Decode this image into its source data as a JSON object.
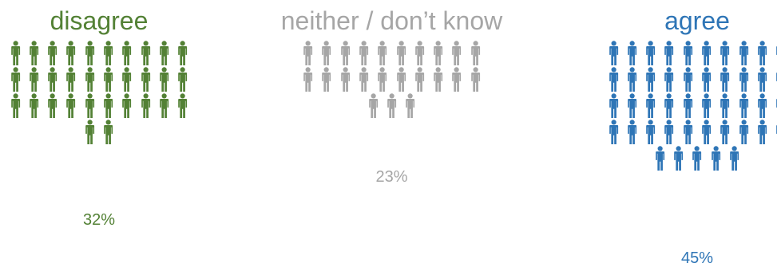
{
  "chart_data": {
    "type": "pictogram",
    "unit": "one figure ≈ 1%",
    "series": [
      {
        "name": "disagree",
        "value": 32,
        "label": "32%",
        "color": "#538135",
        "icons": 32
      },
      {
        "name": "neither / don’t know",
        "value": 23,
        "label": "23%",
        "color": "#a6a6a6",
        "icons": 23
      },
      {
        "name": "agree",
        "value": 45,
        "label": "45%",
        "color": "#2e75b6",
        "icons": 45
      }
    ]
  },
  "icons": {
    "figure": "person-icon"
  }
}
